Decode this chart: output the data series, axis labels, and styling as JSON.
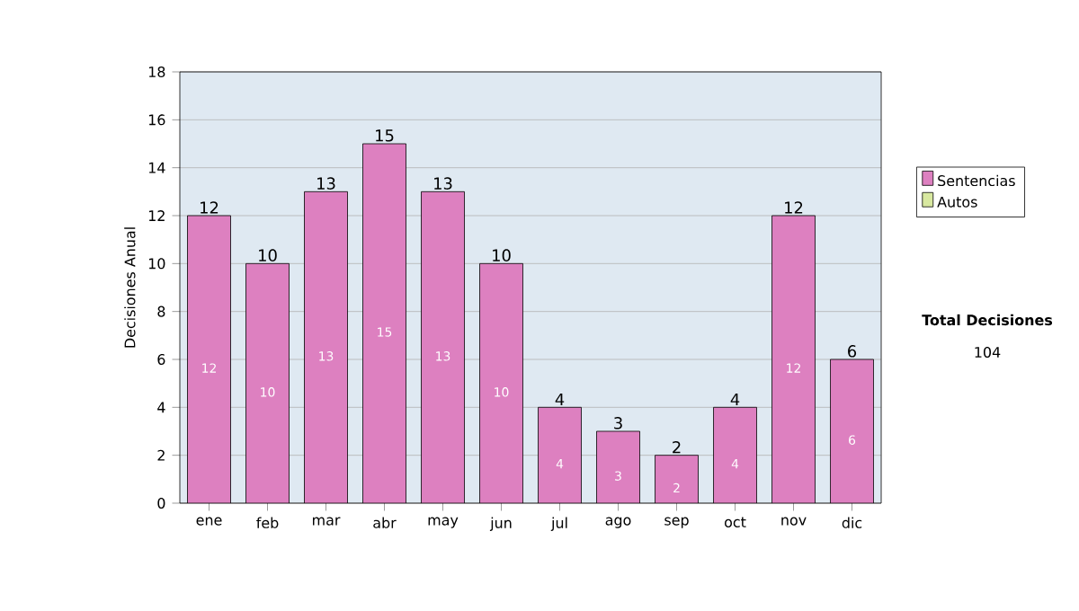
{
  "chart_data": {
    "type": "bar",
    "ylabel": "Decisiones Anual",
    "categories": [
      "ene",
      "feb",
      "mar",
      "abr",
      "may",
      "jun",
      "jul",
      "ago",
      "sep",
      "oct",
      "nov",
      "dic"
    ],
    "series": [
      {
        "name": "Sentencias",
        "color": "#dd80c0",
        "values": [
          12,
          10,
          13,
          15,
          13,
          10,
          4,
          3,
          2,
          4,
          12,
          6
        ]
      },
      {
        "name": "Autos",
        "color": "#d8e8a0",
        "values": [
          null,
          null,
          null,
          null,
          null,
          null,
          null,
          null,
          null,
          null,
          null,
          null
        ]
      }
    ],
    "stacked": true,
    "data_labels": true,
    "totals": [
      "12",
      "10",
      "13",
      "15",
      "13",
      "10",
      "4",
      "3",
      "2",
      "4",
      "12",
      "6"
    ],
    "ylim": [
      0,
      18
    ],
    "yticks": [
      0,
      2,
      4,
      6,
      8,
      10,
      12,
      14,
      16,
      18
    ],
    "grid": "y",
    "legend": "right",
    "annotations": [
      "Total Decisiones",
      "104"
    ]
  }
}
